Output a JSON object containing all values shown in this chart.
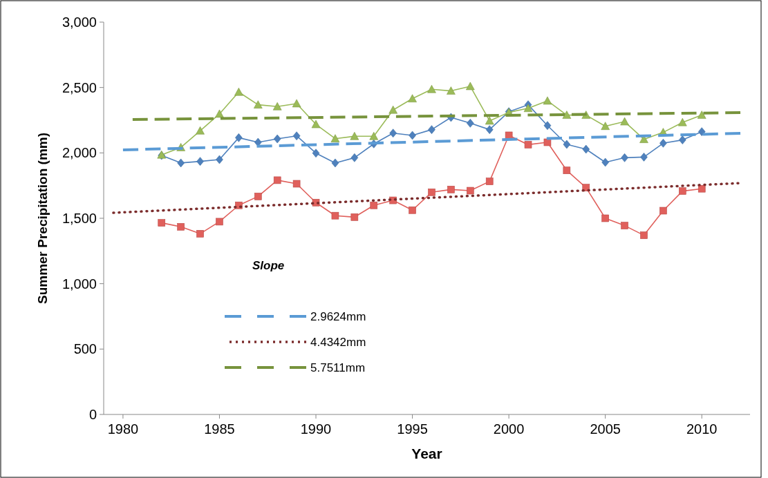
{
  "chart_data": {
    "type": "line",
    "xlabel": "Year",
    "ylabel": "Summer Precipitation (mm)",
    "legend_title": "Slope",
    "legend": "bottom left",
    "grid": false,
    "xlim": [
      1979,
      2012.5
    ],
    "xticks": [
      1980,
      1985,
      1990,
      1995,
      2000,
      2005,
      2010
    ],
    "ylim": [
      0,
      3000
    ],
    "yticks": [
      {
        "value": 0,
        "label": "0"
      },
      {
        "value": 500,
        "label": "500"
      },
      {
        "value": 1000,
        "label": "1,000"
      },
      {
        "value": 1500,
        "label": "1,500"
      },
      {
        "value": 2000,
        "label": "2,000"
      },
      {
        "value": 2500,
        "label": "2,500"
      },
      {
        "value": 3000,
        "label": "3,000"
      }
    ],
    "x": [
      1982,
      1983,
      1984,
      1985,
      1986,
      1987,
      1988,
      1989,
      1990,
      1991,
      1992,
      1993,
      1994,
      1995,
      1996,
      1997,
      1998,
      1999,
      2000,
      2001,
      2002,
      2003,
      2004,
      2005,
      2006,
      2007,
      2008,
      2009,
      2010
    ],
    "series": [
      {
        "color": "#4f81bd",
        "marker": "diamond",
        "line_style": "solid",
        "values": [
          1980,
          1923,
          1935,
          1949,
          2116,
          2081,
          2107,
          2130,
          1998,
          1923,
          1963,
          2069,
          2151,
          2134,
          2178,
          2271,
          2227,
          2178,
          2315,
          2368,
          2209,
          2065,
          2028,
          1928,
          1963,
          1968,
          2074,
          2099,
          2162
        ]
      },
      {
        "color": "#e0605c",
        "marker": "square",
        "line_style": "solid",
        "values": [
          1465,
          1435,
          1382,
          1474,
          1599,
          1667,
          1791,
          1764,
          1620,
          1520,
          1509,
          1599,
          1637,
          1562,
          1699,
          1720,
          1711,
          1782,
          2134,
          2063,
          2081,
          1866,
          1734,
          1500,
          1444,
          1370,
          1558,
          1708,
          1726
        ]
      },
      {
        "color": "#9bbb59",
        "marker": "triangle",
        "line_style": "solid",
        "values": [
          1985,
          2042,
          2169,
          2298,
          2465,
          2368,
          2354,
          2377,
          2218,
          2109,
          2127,
          2127,
          2328,
          2415,
          2486,
          2474,
          2509,
          2245,
          2310,
          2341,
          2398,
          2289,
          2289,
          2204,
          2239,
          2104,
          2157,
          2233,
          2289
        ]
      },
      {
        "name": "2.9624mm",
        "color": "#5b9bd5",
        "marker": "none",
        "line_style": "dashed",
        "x": [
          1980,
          2012
        ],
        "values": [
          2023,
          2150
        ]
      },
      {
        "name": "4.4342mm",
        "color": "#7b2c2c",
        "marker": "none",
        "line_style": "dotted",
        "x": [
          1979.5,
          2012
        ],
        "values": [
          1542,
          1769
        ]
      },
      {
        "name": "5.7511mm",
        "color": "#77933c",
        "marker": "none",
        "line_style": "dashed",
        "x": [
          1980.5,
          2012
        ],
        "values": [
          2255,
          2308
        ]
      }
    ]
  }
}
